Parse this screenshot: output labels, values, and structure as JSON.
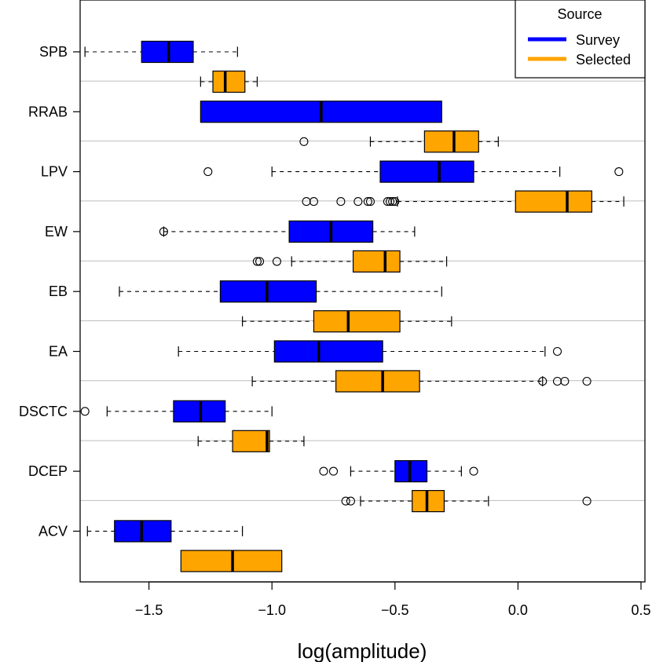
{
  "chart_data": {
    "type": "boxplot",
    "orientation": "horizontal",
    "title": "",
    "xlabel": "log(amplitude)",
    "ylabel": "",
    "xlim": [
      -1.85,
      0.52
    ],
    "x_ticks": [
      -1.5,
      -1.0,
      -0.5,
      0.0,
      0.5
    ],
    "x_tick_labels": [
      "−1.5",
      "−1.0",
      "−0.5",
      "0.0",
      "0.5"
    ],
    "categories": [
      "SPB",
      "RRAB",
      "LPV",
      "EW",
      "EB",
      "EA",
      "DSCTC",
      "DCEP",
      "ACV"
    ],
    "legend": {
      "title": "Source",
      "position": "top-right",
      "entries": [
        {
          "name": "Survey",
          "color": "#0000ff"
        },
        {
          "name": "Selected",
          "color": "#ffa500"
        }
      ]
    },
    "series": [
      {
        "name": "Survey",
        "color": "#0000ff",
        "boxes": [
          {
            "category": "SPB",
            "whisker_low": -1.76,
            "q1": -1.53,
            "median": -1.42,
            "q3": -1.32,
            "whisker_high": -1.14,
            "outliers": []
          },
          {
            "category": "RRAB",
            "whisker_low": -1.29,
            "q1": -1.29,
            "median": -0.8,
            "q3": -0.31,
            "whisker_high": -0.31,
            "outliers": []
          },
          {
            "category": "LPV",
            "whisker_low": -1.0,
            "q1": -0.56,
            "median": -0.32,
            "q3": -0.18,
            "whisker_high": 0.17,
            "outliers": [
              -1.26,
              0.41
            ]
          },
          {
            "category": "EW",
            "whisker_low": -1.44,
            "q1": -0.93,
            "median": -0.76,
            "q3": -0.59,
            "whisker_high": -0.42,
            "outliers": [
              -1.44
            ]
          },
          {
            "category": "EB",
            "whisker_low": -1.62,
            "q1": -1.21,
            "median": -1.02,
            "q3": -0.82,
            "whisker_high": -0.31,
            "outliers": []
          },
          {
            "category": "EA",
            "whisker_low": -1.38,
            "q1": -0.99,
            "median": -0.81,
            "q3": -0.55,
            "whisker_high": 0.11,
            "outliers": [
              0.16
            ]
          },
          {
            "category": "DSCTC",
            "whisker_low": -1.67,
            "q1": -1.4,
            "median": -1.29,
            "q3": -1.19,
            "whisker_high": -1.0,
            "outliers": [
              -1.76
            ]
          },
          {
            "category": "DCEP",
            "whisker_low": -0.68,
            "q1": -0.5,
            "median": -0.44,
            "q3": -0.37,
            "whisker_high": -0.23,
            "outliers": [
              -0.79,
              -0.75,
              -0.18
            ]
          },
          {
            "category": "ACV",
            "whisker_low": -1.75,
            "q1": -1.64,
            "median": -1.53,
            "q3": -1.41,
            "whisker_high": -1.12,
            "outliers": []
          }
        ]
      },
      {
        "name": "Selected",
        "color": "#ffa500",
        "boxes": [
          {
            "category": "SPB",
            "whisker_low": -1.29,
            "q1": -1.24,
            "median": -1.19,
            "q3": -1.11,
            "whisker_high": -1.06,
            "outliers": []
          },
          {
            "category": "RRAB",
            "whisker_low": -0.6,
            "q1": -0.38,
            "median": -0.26,
            "q3": -0.16,
            "whisker_high": -0.08,
            "outliers": [
              -0.87
            ]
          },
          {
            "category": "LPV",
            "whisker_low": -0.49,
            "q1": -0.01,
            "median": 0.2,
            "q3": 0.3,
            "whisker_high": 0.43,
            "outliers": [
              -0.86,
              -0.83,
              -0.72,
              -0.65,
              -0.61,
              -0.6,
              -0.53,
              -0.52,
              -0.51,
              -0.5
            ]
          },
          {
            "category": "EW",
            "whisker_low": -0.92,
            "q1": -0.67,
            "median": -0.54,
            "q3": -0.48,
            "whisker_high": -0.29,
            "outliers": [
              -1.06,
              -1.05,
              -0.98
            ]
          },
          {
            "category": "EB",
            "whisker_low": -1.12,
            "q1": -0.83,
            "median": -0.69,
            "q3": -0.48,
            "whisker_high": -0.27,
            "outliers": []
          },
          {
            "category": "EA",
            "whisker_low": -1.08,
            "q1": -0.74,
            "median": -0.55,
            "q3": -0.4,
            "whisker_high": 0.1,
            "outliers": [
              0.1,
              0.16,
              0.19,
              0.28
            ]
          },
          {
            "category": "DSCTC",
            "whisker_low": -1.3,
            "q1": -1.16,
            "median": -1.02,
            "q3": -1.01,
            "whisker_high": -0.87,
            "outliers": []
          },
          {
            "category": "DCEP",
            "whisker_low": -0.64,
            "q1": -0.43,
            "median": -0.37,
            "q3": -0.3,
            "whisker_high": -0.12,
            "outliers": [
              -0.7,
              -0.68,
              0.28
            ]
          },
          {
            "category": "ACV",
            "whisker_low": -1.37,
            "q1": -1.37,
            "median": -1.16,
            "q3": -0.96,
            "whisker_high": -0.96,
            "outliers": []
          }
        ]
      }
    ]
  }
}
